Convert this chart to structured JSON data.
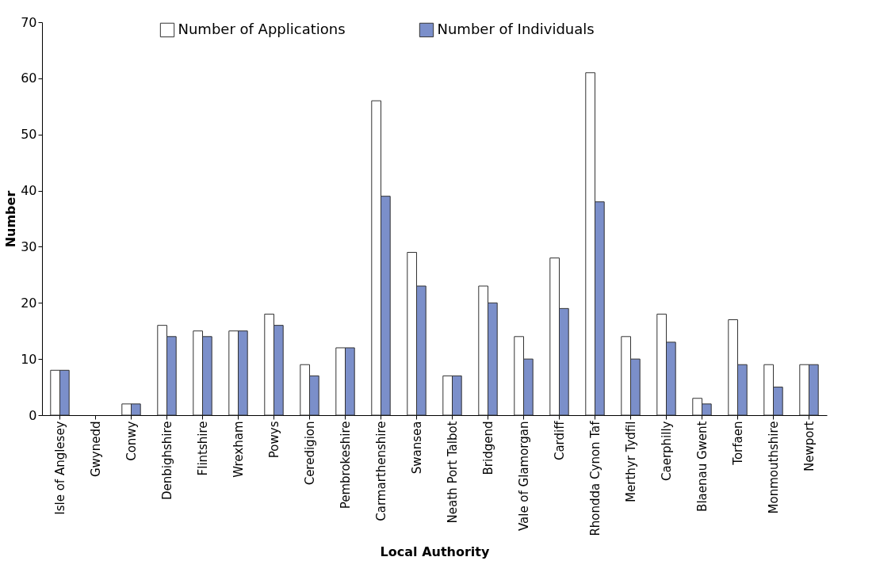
{
  "chart_data": {
    "type": "bar",
    "xlabel": "Local Authority",
    "ylabel": "Number",
    "categories": [
      "Isle of Anglesey",
      "Gwynedd",
      "Conwy",
      "Denbighshire",
      "Flintshire",
      "Wrexham",
      "Powys",
      "Ceredigion",
      "Pembrokeshire",
      "Carmarthenshire",
      "Swansea",
      "Neath Port Talbot",
      "Bridgend",
      "Vale of Glamorgan",
      "Cardiff",
      "Rhondda Cynon Taf",
      "Merthyr Tydfil",
      "Caerphilly",
      "Blaenau Gwent",
      "Torfaen",
      "Monmouthshire",
      "Newport"
    ],
    "series": [
      {
        "name": "Number of Applications",
        "color": "#ffffff",
        "values": [
          8,
          0,
          2,
          16,
          15,
          15,
          18,
          9,
          12,
          56,
          29,
          7,
          23,
          14,
          28,
          61,
          14,
          18,
          3,
          17,
          9,
          9
        ]
      },
      {
        "name": "Number of Individuals",
        "color": "#7b8fca",
        "values": [
          8,
          0,
          2,
          14,
          14,
          15,
          16,
          7,
          12,
          39,
          23,
          7,
          20,
          10,
          19,
          38,
          10,
          13,
          2,
          9,
          5,
          9
        ]
      }
    ],
    "ylim": [
      0,
      70
    ],
    "yticks": [
      0,
      10,
      20,
      30,
      40,
      50,
      60,
      70
    ],
    "grid": false,
    "legend": "top"
  }
}
